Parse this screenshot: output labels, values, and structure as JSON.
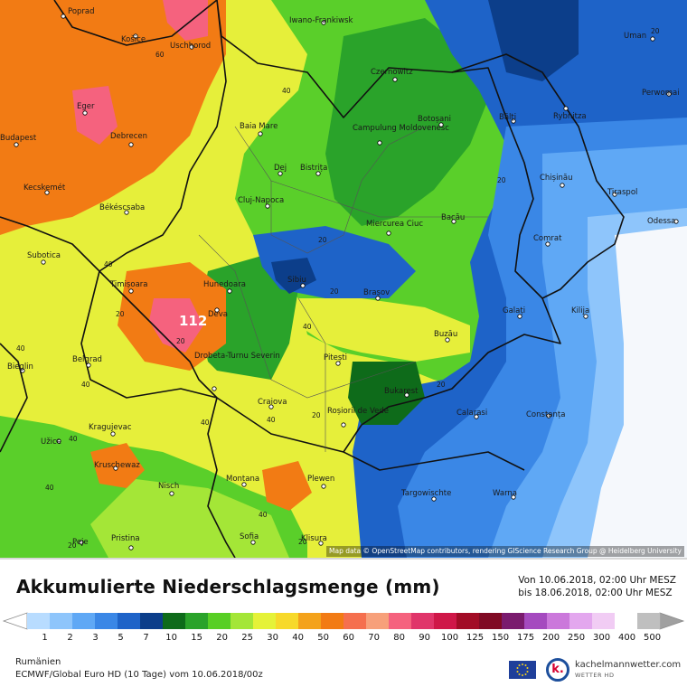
{
  "map": {
    "attribution": "Map data © OpenStreetMap contributors, rendering GIScience Research Group @ Heidelberg University",
    "max_value": "112",
    "isoline_labels": [
      "60",
      "40",
      "40",
      "20",
      "40",
      "20",
      "20",
      "20",
      "20",
      "40",
      "20",
      "40",
      "40",
      "40",
      "40",
      "40",
      "20",
      "20",
      "40",
      "20",
      "20"
    ],
    "cities": [
      "Poprad",
      "Košice",
      "Uschhorod",
      "Iwano-Frankiwsk",
      "Uman",
      "Czernowitz",
      "Eger",
      "Baia Mare",
      "Campulung Moldovenesc",
      "Botoșani",
      "Bălți",
      "Rybnitza",
      "Perwomai",
      "Budapest",
      "Debrecen",
      "Dej",
      "Bistrița",
      "Chișinău",
      "Tiraspol",
      "Kecskemét",
      "Cluj-Napoca",
      "Békéscsaba",
      "Miercurea Ciuc",
      "Bacău",
      "Odessa",
      "Subotica",
      "Comrat",
      "Timișoara",
      "Hunedoara",
      "Sibiu",
      "Brașov",
      "Galați",
      "Kilija",
      "Deva",
      "Bieglin",
      "Belgrad",
      "Drobeta-Turnu Severin",
      "Buzău",
      "Pitești",
      "Craiova",
      "Bukarest",
      "Roșiorii de Vede",
      "Calarasi",
      "Constanța",
      "Kragujevac",
      "Užice",
      "Kruschewaz",
      "Nisch",
      "Montana",
      "Plewen",
      "Targowischte",
      "Warna",
      "Pristina",
      "Sofia",
      "Klisura",
      "Peje"
    ]
  },
  "legend": {
    "title": "Akkumulierte Niederschlagsmenge (mm)",
    "period_from": "Von 10.06.2018, 02:00 Uhr MESZ",
    "period_to": "bis 18.06.2018, 02:00 Uhr MESZ",
    "colors": [
      "#b8dcff",
      "#8ec5fb",
      "#5fa8f5",
      "#3a87e6",
      "#1e63c8",
      "#0c3e8a",
      "#0e6b1a",
      "#2aa32a",
      "#58cf25",
      "#a4e637",
      "#e5f238",
      "#f7d92a",
      "#f4a21a",
      "#f27b14",
      "#f56f4e",
      "#f7a07a",
      "#f5627e",
      "#e0356a",
      "#cf1748",
      "#a20c26",
      "#800a24",
      "#7a1b6e",
      "#a54abf",
      "#cb78db",
      "#e3a7ee",
      "#f1ccf4",
      "#ffffff",
      "#bfbfbf"
    ],
    "ticks": [
      "1",
      "2",
      "3",
      "5",
      "7",
      "10",
      "15",
      "20",
      "25",
      "30",
      "40",
      "50",
      "60",
      "70",
      "80",
      "90",
      "100",
      "125",
      "150",
      "175",
      "200",
      "250",
      "300",
      "400",
      "500"
    ]
  },
  "footer": {
    "region": "Rumänien",
    "model": "ECMWF/Global Euro HD (10 Tage) vom 10.06.2018/00z",
    "brand_letter": "k.",
    "brand_name": "kachelmannwetter.com",
    "brand_sub": "WETTER HD"
  }
}
